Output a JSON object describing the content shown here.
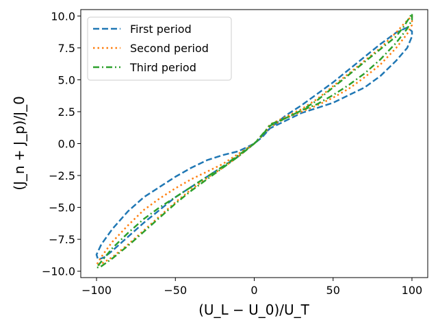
{
  "chart_data": {
    "type": "line",
    "title": "",
    "xlabel": "(U_L − U_0)/U_T",
    "ylabel": "(J_n + J_p)/J_0",
    "xlim": [
      -110,
      110
    ],
    "ylim": [
      -10.5,
      10.5
    ],
    "xticks": [
      -100,
      -50,
      0,
      50,
      100
    ],
    "xtick_labels": [
      "−100",
      "−50",
      "0",
      "50",
      "100"
    ],
    "yticks": [
      -10,
      -7.5,
      -5,
      -2.5,
      0,
      2.5,
      5,
      7.5,
      10
    ],
    "ytick_labels": [
      "−10.0",
      "−7.5",
      "−5.0",
      "−2.5",
      "0.0",
      "2.5",
      "5.0",
      "7.5",
      "10.0"
    ],
    "grid": false,
    "legend_position": "top-left",
    "series": [
      {
        "name": "First period",
        "color": "#1f77b4",
        "style": "dashed",
        "points": [
          [
            0,
            0
          ],
          [
            10,
            1.2
          ],
          [
            20,
            2.2
          ],
          [
            30,
            3.0
          ],
          [
            40,
            3.9
          ],
          [
            50,
            4.8
          ],
          [
            60,
            5.8
          ],
          [
            70,
            6.8
          ],
          [
            80,
            7.8
          ],
          [
            90,
            8.7
          ],
          [
            97,
            9.1
          ],
          [
            100,
            8.8
          ],
          [
            100,
            8.4
          ],
          [
            97,
            7.5
          ],
          [
            90,
            6.5
          ],
          [
            80,
            5.3
          ],
          [
            70,
            4.4
          ],
          [
            60,
            3.8
          ],
          [
            50,
            3.2
          ],
          [
            40,
            2.8
          ],
          [
            30,
            2.4
          ],
          [
            20,
            1.8
          ],
          [
            10,
            1.2
          ],
          [
            5,
            0.5
          ],
          [
            0,
            0
          ],
          [
            -5,
            -0.3
          ],
          [
            -10,
            -0.6
          ],
          [
            -20,
            -0.9
          ],
          [
            -30,
            -1.3
          ],
          [
            -40,
            -1.9
          ],
          [
            -50,
            -2.6
          ],
          [
            -60,
            -3.4
          ],
          [
            -70,
            -4.2
          ],
          [
            -80,
            -5.3
          ],
          [
            -90,
            -6.7
          ],
          [
            -97,
            -7.9
          ],
          [
            -100,
            -8.7
          ],
          [
            -99,
            -9.1
          ],
          [
            -95,
            -8.9
          ],
          [
            -90,
            -8.4
          ],
          [
            -80,
            -7.3
          ],
          [
            -70,
            -6.2
          ],
          [
            -60,
            -5.2
          ],
          [
            -50,
            -4.2
          ],
          [
            -40,
            -3.4
          ],
          [
            -30,
            -2.6
          ],
          [
            -20,
            -1.8
          ],
          [
            -10,
            -1.0
          ],
          [
            0,
            0
          ]
        ]
      },
      {
        "name": "Second period",
        "color": "#ff7f0e",
        "style": "dotted",
        "points": [
          [
            0,
            0
          ],
          [
            5,
            0.6
          ],
          [
            10,
            1.5
          ],
          [
            20,
            2.1
          ],
          [
            30,
            2.7
          ],
          [
            40,
            3.5
          ],
          [
            50,
            4.5
          ],
          [
            60,
            5.5
          ],
          [
            70,
            6.5
          ],
          [
            80,
            7.5
          ],
          [
            90,
            8.7
          ],
          [
            95,
            9.4
          ],
          [
            100,
            10.0
          ],
          [
            100,
            9.3
          ],
          [
            97,
            8.6
          ],
          [
            90,
            7.5
          ],
          [
            80,
            6.2
          ],
          [
            70,
            5.2
          ],
          [
            60,
            4.3
          ],
          [
            50,
            3.6
          ],
          [
            40,
            3.0
          ],
          [
            30,
            2.5
          ],
          [
            20,
            2.0
          ],
          [
            10,
            1.3
          ],
          [
            0,
            0
          ],
          [
            -10,
            -0.8
          ],
          [
            -20,
            -1.6
          ],
          [
            -30,
            -2.2
          ],
          [
            -40,
            -2.8
          ],
          [
            -50,
            -3.5
          ],
          [
            -60,
            -4.3
          ],
          [
            -70,
            -5.2
          ],
          [
            -80,
            -6.4
          ],
          [
            -90,
            -7.7
          ],
          [
            -96,
            -8.7
          ],
          [
            -100,
            -9.5
          ],
          [
            -98,
            -9.5
          ],
          [
            -90,
            -8.9
          ],
          [
            -80,
            -7.9
          ],
          [
            -70,
            -6.8
          ],
          [
            -60,
            -5.7
          ],
          [
            -50,
            -4.6
          ],
          [
            -40,
            -3.6
          ],
          [
            -30,
            -2.7
          ],
          [
            -20,
            -1.9
          ],
          [
            -10,
            -1.0
          ],
          [
            0,
            0
          ]
        ]
      },
      {
        "name": "Third period",
        "color": "#2ca02c",
        "style": "dashdot",
        "points": [
          [
            0,
            0
          ],
          [
            5,
            0.6
          ],
          [
            10,
            1.5
          ],
          [
            20,
            2.0
          ],
          [
            30,
            2.6
          ],
          [
            40,
            3.4
          ],
          [
            50,
            4.4
          ],
          [
            60,
            5.4
          ],
          [
            70,
            6.4
          ],
          [
            80,
            7.4
          ],
          [
            90,
            8.4
          ],
          [
            95,
            9.2
          ],
          [
            100,
            10.2
          ],
          [
            100,
            9.7
          ],
          [
            97,
            9.0
          ],
          [
            90,
            7.9
          ],
          [
            80,
            6.6
          ],
          [
            70,
            5.5
          ],
          [
            60,
            4.6
          ],
          [
            50,
            3.8
          ],
          [
            40,
            3.1
          ],
          [
            30,
            2.6
          ],
          [
            20,
            2.0
          ],
          [
            10,
            1.4
          ],
          [
            0,
            0
          ],
          [
            -10,
            -0.9
          ],
          [
            -20,
            -1.8
          ],
          [
            -30,
            -2.6
          ],
          [
            -40,
            -3.4
          ],
          [
            -50,
            -4.2
          ],
          [
            -60,
            -5.0
          ],
          [
            -70,
            -5.9
          ],
          [
            -80,
            -7.0
          ],
          [
            -90,
            -8.2
          ],
          [
            -96,
            -9.1
          ],
          [
            -100,
            -9.7
          ],
          [
            -98,
            -9.7
          ],
          [
            -90,
            -9.0
          ],
          [
            -80,
            -8.0
          ],
          [
            -70,
            -6.9
          ],
          [
            -60,
            -5.8
          ],
          [
            -50,
            -4.7
          ],
          [
            -40,
            -3.7
          ],
          [
            -30,
            -2.8
          ],
          [
            -20,
            -1.9
          ],
          [
            -10,
            -1.0
          ],
          [
            0,
            0
          ]
        ]
      }
    ]
  }
}
